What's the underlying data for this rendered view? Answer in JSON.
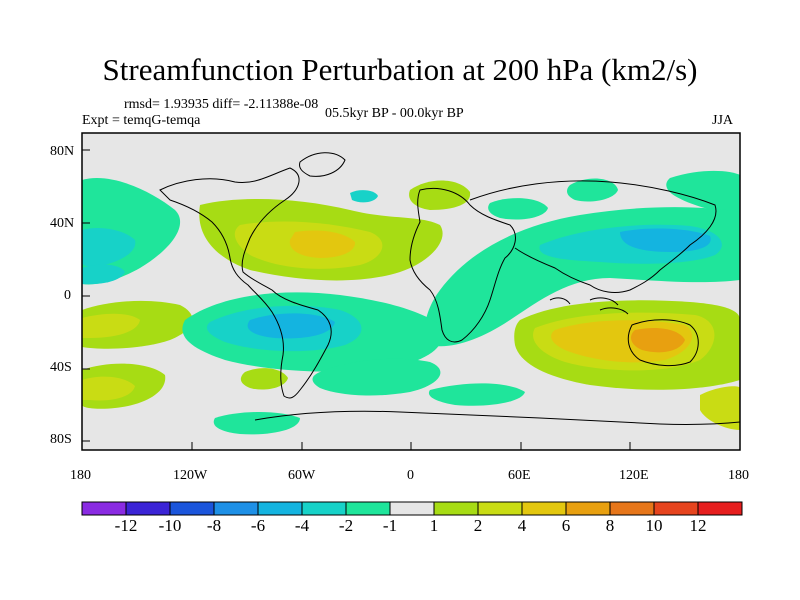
{
  "title": "Streamfunction Perturbation at 200 hPa (km2/s)",
  "rmsd_text": "rmsd= 1.93935 diff= -2.11388e-08",
  "expt_text": "Expt = temqG-temqa",
  "period_text": "05.5kyr BP - 00.0kyr BP",
  "season": "JJA",
  "lat_ticks": [
    "80N",
    "40N",
    "0",
    "40S",
    "80S"
  ],
  "lon_ticks": [
    "180",
    "120W",
    "60W",
    "0",
    "60E",
    "120E",
    "180"
  ],
  "colorbar": {
    "labels": [
      "-12",
      "-10",
      "-8",
      "-6",
      "-4",
      "-2",
      "-1",
      "1",
      "2",
      "4",
      "6",
      "8",
      "10",
      "12"
    ],
    "colors": [
      "#8a2be2",
      "#3b24d6",
      "#1b55db",
      "#1e90e6",
      "#14b4e0",
      "#17d2c8",
      "#1fe59b",
      "#e6e6e6",
      "#a7dc14",
      "#c9dc14",
      "#e3c70f",
      "#e8a010",
      "#e6761a",
      "#e6441e",
      "#e61e1e"
    ]
  },
  "regions": {
    "north_atlantic_positive": "orange",
    "south_pacific_negative": "cyan",
    "asia_negative": "cyan",
    "australia_positive": "orange"
  }
}
